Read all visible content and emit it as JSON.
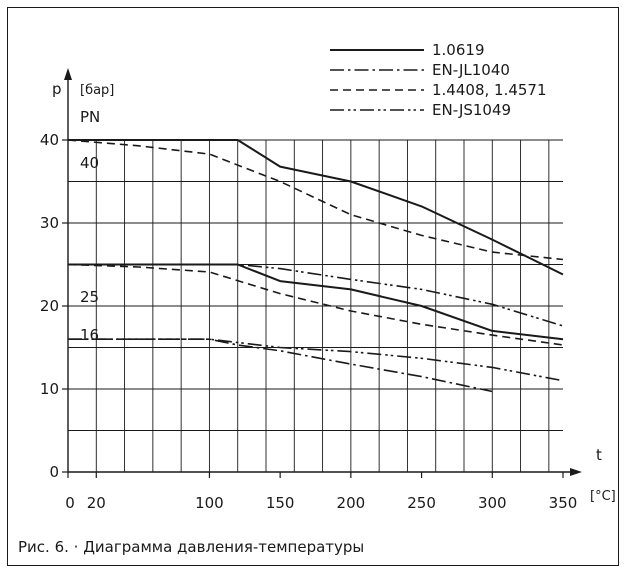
{
  "chart_data": {
    "type": "line",
    "y_axis_symbol": "p",
    "y_unit": "[бар]",
    "y_group_label": "PN",
    "x_axis_symbol": "t",
    "x_unit": "[°C]",
    "x_ticks": [
      0,
      20,
      100,
      150,
      200,
      250,
      300,
      350
    ],
    "x_grid": [
      0,
      20,
      40,
      60,
      80,
      100,
      120,
      140,
      160,
      180,
      200,
      220,
      240,
      260,
      280,
      300,
      320,
      340
    ],
    "y_ticks": [
      0,
      10,
      20,
      30,
      40
    ],
    "y_grid": [
      5,
      10,
      15,
      20,
      25,
      30,
      35,
      40
    ],
    "xlim": [
      0,
      350
    ],
    "ylim": [
      0,
      40
    ],
    "pn_levels": [
      {
        "label": "40",
        "y": 40
      },
      {
        "label": "25",
        "y": 25
      },
      {
        "label": "16",
        "y": 16
      }
    ],
    "legend_position": "top-right",
    "series": [
      {
        "name": "1.0619",
        "style": "solid",
        "group": "PN40",
        "x": [
          0,
          120,
          150,
          200,
          250,
          300,
          350
        ],
        "y": [
          40,
          40,
          36.8,
          35,
          32,
          28,
          23.8
        ]
      },
      {
        "name": "1.4408, 1.4571",
        "style": "dashed",
        "group": "PN40",
        "x": [
          0,
          50,
          100,
          150,
          200,
          250,
          300,
          350
        ],
        "y": [
          40,
          39.3,
          38.3,
          35,
          31,
          28.5,
          26.5,
          25.6
        ]
      },
      {
        "name": "1.0619",
        "style": "solid",
        "group": "PN25",
        "x": [
          0,
          120,
          150,
          200,
          250,
          300,
          350
        ],
        "y": [
          25,
          25,
          23,
          22,
          20,
          17,
          16
        ]
      },
      {
        "name": "EN-JS1049",
        "style": "dashdotdot",
        "group": "PN25",
        "x": [
          0,
          120,
          150,
          200,
          250,
          300,
          350
        ],
        "y": [
          25,
          25,
          24.5,
          23.2,
          22,
          20.2,
          17.6
        ]
      },
      {
        "name": "1.4408, 1.4571",
        "style": "dashed",
        "group": "PN25",
        "x": [
          0,
          50,
          100,
          150,
          200,
          250,
          300,
          350
        ],
        "y": [
          25,
          24.7,
          24.1,
          21.5,
          19.4,
          17.8,
          16.5,
          15.3
        ]
      },
      {
        "name": "EN-JS1049",
        "style": "dashdotdot",
        "group": "PN16",
        "x": [
          0,
          100,
          120,
          150,
          200,
          250,
          300,
          350
        ],
        "y": [
          16,
          16,
          15.6,
          15,
          14.5,
          13.7,
          12.6,
          11
        ]
      },
      {
        "name": "EN-JL1040",
        "style": "dashdot",
        "group": "PN16",
        "x": [
          0,
          100,
          120,
          150,
          200,
          250,
          300
        ],
        "y": [
          16,
          16,
          15.3,
          14.6,
          13,
          11.5,
          9.7
        ]
      }
    ],
    "legend": [
      {
        "name": "1.0619",
        "style": "solid"
      },
      {
        "name": "EN-JL1040",
        "style": "dashdot"
      },
      {
        "name": "1.4408, 1.4571",
        "style": "dashed"
      },
      {
        "name": "EN-JS1049",
        "style": "dashdotdot"
      }
    ],
    "caption": "Рис. 6. · Диаграмма давления-температуры"
  },
  "colors": {
    "ink": "#1a1a1a",
    "grid": "#1a1a1a",
    "background": "#ffffff"
  }
}
